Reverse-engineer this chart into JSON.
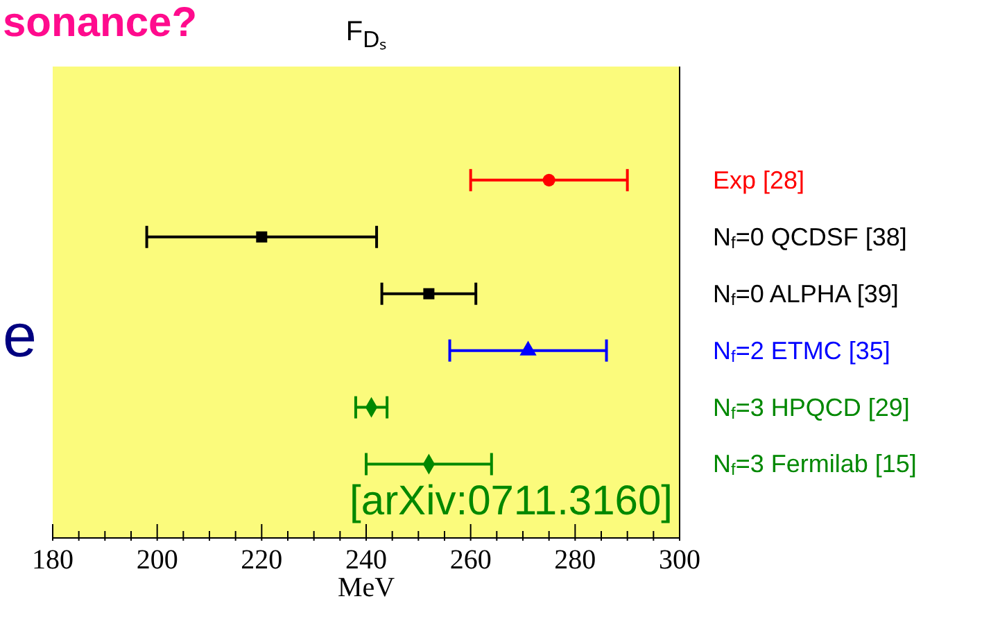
{
  "chart_data": {
    "type": "scatter",
    "orientation": "horizontal",
    "title": "F$_{Dₛ}$",
    "xlabel": "MeV",
    "categories": [
      "Exp  [28]",
      "N$_{f}$=0 QCDSF  [38]",
      "N$_{f}$=0 ALPHA  [39]",
      "N$_{f}$=2 ETMC  [35]",
      "N$_{f}$=3 HPQCD  [29]",
      "N$_{f}$=3 Fermilab  [15]"
    ],
    "series": [
      {
        "color": "#ff0000",
        "marker": "circle",
        "values": [
          275,
          null,
          null,
          null,
          null,
          null
        ],
        "errors": [
          15,
          null,
          null,
          null,
          null,
          null
        ]
      },
      {
        "color": "#000000",
        "marker": "square",
        "values": [
          null,
          220,
          252,
          null,
          null,
          null
        ],
        "errors": [
          null,
          22,
          9,
          null,
          null,
          null
        ]
      },
      {
        "color": "#0000ff",
        "marker": "triangle",
        "values": [
          null,
          null,
          null,
          271,
          null,
          null
        ],
        "errors": [
          null,
          null,
          null,
          15,
          null,
          null
        ]
      },
      {
        "color": "#008800",
        "marker": "diamond",
        "values": [
          null,
          null,
          null,
          null,
          241,
          252
        ],
        "errors": [
          null,
          null,
          null,
          null,
          3,
          12
        ]
      }
    ],
    "xlim": [
      180,
      300
    ],
    "xticks": [
      180,
      {
        "value": 185,
        "label": null
      },
      {
        "value": 190,
        "label": null
      },
      {
        "value": 195,
        "label": null
      },
      200,
      {
        "value": 205,
        "label": null
      },
      {
        "value": 210,
        "label": null
      },
      {
        "value": 215,
        "label": null
      },
      220,
      {
        "value": 225,
        "label": null
      },
      {
        "value": 230,
        "label": null
      },
      {
        "value": 235,
        "label": null
      },
      240,
      {
        "value": 245,
        "label": null
      },
      {
        "value": 250,
        "label": null
      },
      {
        "value": 255,
        "label": null
      },
      260,
      {
        "value": 265,
        "label": null
      },
      {
        "value": 270,
        "label": null
      },
      {
        "value": 275,
        "label": null
      },
      280,
      {
        "value": 285,
        "label": null
      },
      {
        "value": 290,
        "label": null
      },
      {
        "value": 295,
        "label": null
      },
      300
    ],
    "grid": false,
    "annotations": [
      "[arXiv:0711.3160]",
      "sonance?",
      "e"
    ]
  }
}
